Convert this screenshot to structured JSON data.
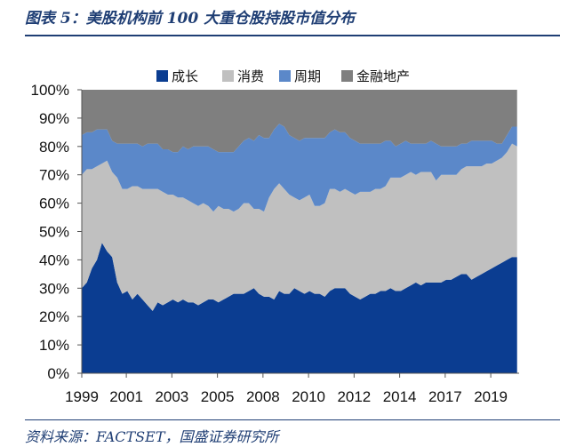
{
  "figure": {
    "title": "图表 5：美股机构前 100 大重仓股持股市值分布",
    "source": "资料来源：FACTSET，国盛证券研究所"
  },
  "colors": {
    "growth": "#0b3d91",
    "consumer": "#c0c0c0",
    "cyclical": "#5b88c9",
    "finance_realestate": "#7f7f7f",
    "title": "#1f3e74"
  },
  "chart_data": {
    "type": "area",
    "stacked": true,
    "percent": true,
    "title": "",
    "xlabel": "",
    "ylabel": "",
    "ylim": [
      0,
      100
    ],
    "xlim": [
      1999,
      2020.6
    ],
    "yticks": [
      "0%",
      "10%",
      "20%",
      "30%",
      "40%",
      "50%",
      "60%",
      "70%",
      "80%",
      "90%",
      "100%"
    ],
    "xticks": [
      {
        "label": "1999",
        "x": 1999
      },
      {
        "label": "2001",
        "x": 2001.2
      },
      {
        "label": "2003",
        "x": 2003.45
      },
      {
        "label": "2005",
        "x": 2005.7
      },
      {
        "label": "2008",
        "x": 2007.95
      },
      {
        "label": "2010",
        "x": 2010.2
      },
      {
        "label": "2012",
        "x": 2012.45
      },
      {
        "label": "2014",
        "x": 2014.7
      },
      {
        "label": "2017",
        "x": 2016.95
      },
      {
        "label": "2019",
        "x": 2019.2
      }
    ],
    "legend": {
      "position": "top",
      "entries": [
        "成长",
        "消费",
        "周期",
        "金融地产"
      ]
    },
    "x": [
      1999.0,
      1999.25,
      1999.5,
      1999.75,
      2000.0,
      2000.25,
      2000.5,
      2000.75,
      2001.0,
      2001.25,
      2001.5,
      2001.75,
      2002.0,
      2002.25,
      2002.5,
      2002.75,
      2003.0,
      2003.25,
      2003.5,
      2003.75,
      2004.0,
      2004.25,
      2004.5,
      2004.75,
      2005.0,
      2005.25,
      2005.5,
      2005.75,
      2006.0,
      2006.25,
      2006.5,
      2006.75,
      2007.0,
      2007.25,
      2007.5,
      2007.75,
      2008.0,
      2008.25,
      2008.5,
      2008.75,
      2009.0,
      2009.25,
      2009.5,
      2009.75,
      2010.0,
      2010.25,
      2010.5,
      2010.75,
      2011.0,
      2011.25,
      2011.5,
      2011.75,
      2012.0,
      2012.25,
      2012.5,
      2012.75,
      2013.0,
      2013.25,
      2013.5,
      2013.75,
      2014.0,
      2014.25,
      2014.5,
      2014.75,
      2015.0,
      2015.25,
      2015.5,
      2015.75,
      2016.0,
      2016.25,
      2016.5,
      2016.75,
      2017.0,
      2017.25,
      2017.5,
      2017.75,
      2018.0,
      2018.25,
      2018.5,
      2018.75,
      2019.0,
      2019.25,
      2019.5,
      2019.75,
      2020.0,
      2020.25,
      2020.5
    ],
    "series": [
      {
        "name": "成长",
        "color": "#0b3d91",
        "values": [
          30,
          32,
          37,
          40,
          46,
          43,
          41,
          32,
          28,
          29,
          26,
          28,
          26,
          24,
          22,
          25,
          24,
          25,
          26,
          25,
          26,
          25,
          25,
          24,
          25,
          26,
          26,
          25,
          26,
          27,
          28,
          28,
          28,
          29,
          30,
          28,
          27,
          27,
          26,
          29,
          28,
          28,
          30,
          29,
          28,
          29,
          28,
          28,
          27,
          29,
          30,
          30,
          30,
          28,
          27,
          26,
          27,
          28,
          28,
          29,
          29,
          30,
          29,
          29,
          30,
          31,
          32,
          31,
          32,
          32,
          32,
          32,
          33,
          33,
          34,
          35,
          35,
          33,
          34,
          35,
          36,
          37,
          38,
          39,
          40,
          41,
          41
        ]
      },
      {
        "name": "消费",
        "color": "#c0c0c0",
        "values": [
          40,
          40,
          35,
          33,
          28,
          32,
          30,
          37,
          37,
          36,
          40,
          38,
          39,
          41,
          43,
          40,
          40,
          38,
          37,
          37,
          36,
          36,
          35,
          35,
          35,
          33,
          31,
          34,
          32,
          31,
          29,
          30,
          32,
          31,
          28,
          30,
          30,
          35,
          39,
          38,
          37,
          35,
          32,
          32,
          34,
          34,
          31,
          31,
          33,
          36,
          35,
          34,
          35,
          36,
          36,
          38,
          37,
          36,
          37,
          36,
          37,
          39,
          40,
          40,
          40,
          40,
          38,
          40,
          39,
          39,
          36,
          38,
          37,
          37,
          36,
          37,
          38,
          40,
          39,
          38,
          38,
          37,
          37,
          37,
          38,
          40,
          39
        ]
      },
      {
        "name": "周期",
        "color": "#5b88c9",
        "values": [
          14,
          13,
          13,
          13,
          12,
          11,
          11,
          12,
          16,
          16,
          15,
          15,
          15,
          16,
          16,
          16,
          15,
          16,
          15,
          16,
          18,
          18,
          20,
          21,
          20,
          21,
          22,
          19,
          20,
          20,
          21,
          22,
          22,
          23,
          24,
          26,
          26,
          21,
          21,
          21,
          22,
          21,
          21,
          21,
          21,
          20,
          24,
          24,
          23,
          20,
          21,
          21,
          20,
          19,
          19,
          17,
          17,
          17,
          16,
          16,
          16,
          13,
          11,
          12,
          12,
          10,
          11,
          10,
          10,
          11,
          13,
          10,
          10,
          10,
          10,
          9,
          8,
          9,
          9,
          9,
          8,
          8,
          6,
          5,
          6,
          6,
          7
        ]
      },
      {
        "name": "金融地产",
        "color": "#7f7f7f",
        "values": [
          16,
          15,
          15,
          14,
          14,
          14,
          18,
          19,
          19,
          19,
          19,
          19,
          20,
          19,
          19,
          19,
          21,
          21,
          22,
          22,
          20,
          21,
          20,
          20,
          20,
          20,
          21,
          22,
          22,
          22,
          22,
          20,
          18,
          17,
          18,
          16,
          17,
          17,
          14,
          12,
          13,
          16,
          17,
          18,
          17,
          17,
          17,
          17,
          17,
          15,
          14,
          15,
          15,
          17,
          18,
          19,
          19,
          19,
          19,
          19,
          18,
          18,
          20,
          19,
          18,
          19,
          19,
          19,
          19,
          18,
          19,
          20,
          20,
          20,
          20,
          19,
          19,
          18,
          18,
          18,
          18,
          18,
          19,
          19,
          16,
          13,
          13
        ]
      }
    ]
  }
}
